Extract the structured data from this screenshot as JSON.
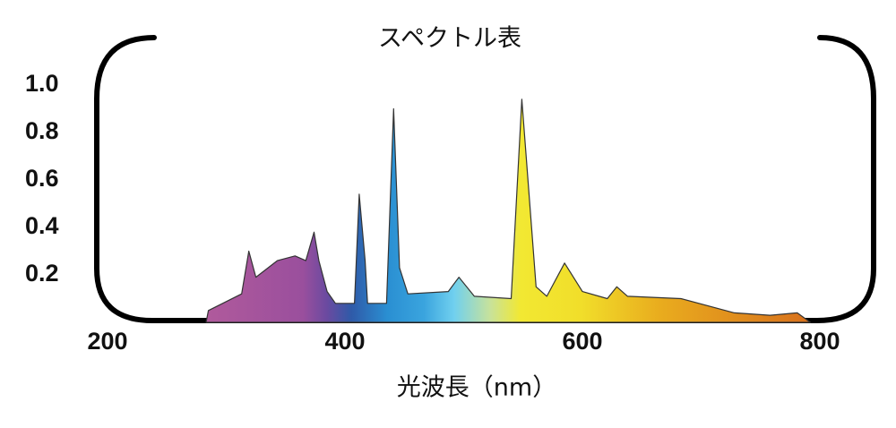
{
  "chart_data": {
    "type": "area",
    "title": "スペクトル表",
    "x_label": "光波長（nm）",
    "x": [
      283,
      285,
      313,
      319,
      325,
      343,
      358,
      367,
      374,
      378,
      385,
      392,
      408,
      412,
      417,
      419,
      435,
      441,
      446,
      453,
      487,
      496,
      509,
      540,
      549,
      561,
      570,
      585,
      600,
      621,
      629,
      638,
      683,
      728,
      758,
      781,
      792
    ],
    "values": [
      0,
      0.05,
      0.12,
      0.3,
      0.19,
      0.26,
      0.28,
      0.26,
      0.38,
      0.26,
      0.13,
      0.08,
      0.08,
      0.54,
      0.26,
      0.08,
      0.08,
      0.9,
      0.23,
      0.12,
      0.13,
      0.19,
      0.11,
      0.1,
      0.94,
      0.15,
      0.11,
      0.25,
      0.13,
      0.1,
      0.15,
      0.11,
      0.1,
      0.04,
      0.03,
      0.04,
      0
    ],
    "xlim": [
      200,
      800
    ],
    "xticks": [
      200,
      400,
      600,
      800
    ],
    "ylim": [
      0,
      1
    ],
    "yticks": [
      0.2,
      0.4,
      0.6,
      0.8,
      {
        "value": 1,
        "label": "1.0"
      }
    ],
    "grid": false
  }
}
